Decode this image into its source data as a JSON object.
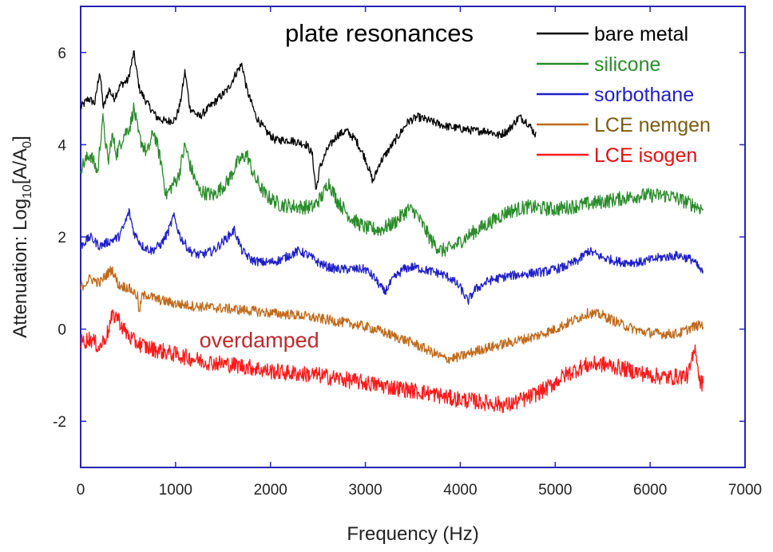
{
  "chart_data": {
    "type": "line",
    "title": "plate resonances",
    "xlabel": "Frequency (Hz)",
    "ylabel_prefix": "Attenuation: Log",
    "ylabel_sub": "10",
    "ylabel_suffix": "[A/A",
    "ylabel_sub2": "0",
    "ylabel_end": "]",
    "xlim": [
      0,
      7000
    ],
    "ylim": [
      -3,
      7
    ],
    "xticks": [
      0,
      1000,
      2000,
      3000,
      4000,
      5000,
      6000,
      7000
    ],
    "yticks": [
      -2,
      0,
      2,
      4,
      6
    ],
    "annotation": {
      "text": "overdamped",
      "x": 1250,
      "y": -0.4,
      "color": "#c0282d"
    },
    "series": [
      {
        "name": "bare metal",
        "color": "#000000",
        "label_color": "#000000",
        "noise": 0.09,
        "x": [
          0,
          80,
          150,
          200,
          240,
          300,
          350,
          420,
          500,
          560,
          620,
          700,
          800,
          900,
          1000,
          1050,
          1100,
          1150,
          1250,
          1400,
          1550,
          1650,
          1700,
          1750,
          1850,
          1950,
          2050,
          2200,
          2300,
          2380,
          2440,
          2480,
          2520,
          2600,
          2700,
          2800,
          2900,
          3000,
          3080,
          3150,
          3250,
          3350,
          3450,
          3550,
          3700,
          3850,
          4000,
          4150,
          4300,
          4400,
          4500,
          4620,
          4700,
          4800
        ],
        "y": [
          4.8,
          5.0,
          4.9,
          5.6,
          4.8,
          5.2,
          5.0,
          5.3,
          5.4,
          6.0,
          5.2,
          4.9,
          4.6,
          4.5,
          4.55,
          4.9,
          5.6,
          4.8,
          4.6,
          4.9,
          5.2,
          5.6,
          5.75,
          5.2,
          4.6,
          4.3,
          4.1,
          4.1,
          4.05,
          4.0,
          3.8,
          3.0,
          3.5,
          3.9,
          4.2,
          4.3,
          4.1,
          3.7,
          3.2,
          3.6,
          3.9,
          4.2,
          4.5,
          4.6,
          4.5,
          4.4,
          4.35,
          4.3,
          4.3,
          4.2,
          4.3,
          4.6,
          4.5,
          4.2
        ]
      },
      {
        "name": "silicone",
        "color": "#2a8c2a",
        "label_color": "#2a8c2a",
        "noise": 0.16,
        "x": [
          0,
          100,
          180,
          230,
          290,
          330,
          380,
          450,
          520,
          560,
          610,
          700,
          770,
          850,
          900,
          960,
          1030,
          1100,
          1160,
          1250,
          1400,
          1550,
          1650,
          1750,
          1830,
          1950,
          2100,
          2300,
          2450,
          2550,
          2610,
          2700,
          2850,
          3000,
          3150,
          3300,
          3450,
          3520,
          3620,
          3700,
          3800,
          3900,
          4000,
          4100,
          4300,
          4500,
          4700,
          5000,
          5300,
          5600,
          5900,
          6200,
          6450,
          6560
        ],
        "y": [
          3.5,
          3.8,
          3.4,
          4.6,
          3.6,
          4.2,
          3.8,
          4.2,
          4.4,
          4.8,
          4.2,
          3.8,
          4.3,
          3.6,
          2.9,
          3.1,
          3.3,
          4.0,
          3.5,
          3.0,
          2.9,
          3.2,
          3.6,
          3.8,
          3.3,
          2.9,
          2.7,
          2.65,
          2.65,
          2.9,
          3.2,
          2.8,
          2.4,
          2.2,
          2.15,
          2.3,
          2.6,
          2.55,
          2.2,
          1.9,
          1.7,
          1.75,
          1.9,
          2.05,
          2.3,
          2.55,
          2.65,
          2.6,
          2.7,
          2.8,
          2.9,
          2.9,
          2.7,
          2.6
        ]
      },
      {
        "name": "sorbothane",
        "color": "#1f1fc8",
        "label_color": "#1f1fc8",
        "noise": 0.1,
        "x": [
          0,
          100,
          200,
          300,
          400,
          450,
          510,
          560,
          650,
          750,
          850,
          920,
          980,
          1050,
          1150,
          1250,
          1400,
          1550,
          1620,
          1700,
          1800,
          1900,
          2000,
          2100,
          2200,
          2300,
          2400,
          2500,
          2600,
          2700,
          2800,
          2900,
          3000,
          3100,
          3200,
          3300,
          3400,
          3500,
          3600,
          3700,
          3800,
          3900,
          4000,
          4080,
          4150,
          4300,
          4500,
          4700,
          4900,
          5100,
          5250,
          5350,
          5500,
          5700,
          5900,
          6100,
          6300,
          6450,
          6560
        ],
        "y": [
          1.8,
          2.0,
          1.8,
          1.9,
          2.0,
          2.2,
          2.55,
          2.1,
          1.8,
          1.7,
          1.85,
          2.1,
          2.45,
          2.0,
          1.7,
          1.6,
          1.7,
          2.0,
          2.15,
          1.7,
          1.5,
          1.45,
          1.45,
          1.5,
          1.6,
          1.7,
          1.6,
          1.45,
          1.35,
          1.3,
          1.3,
          1.3,
          1.3,
          1.1,
          0.8,
          1.1,
          1.3,
          1.35,
          1.3,
          1.25,
          1.2,
          1.1,
          0.9,
          0.6,
          0.85,
          1.05,
          1.15,
          1.2,
          1.25,
          1.35,
          1.5,
          1.7,
          1.55,
          1.45,
          1.45,
          1.55,
          1.6,
          1.5,
          1.2
        ]
      },
      {
        "name": "LCE nemgen",
        "color": "#c06a1a",
        "label_color": "#7a5c12",
        "noise": 0.11,
        "x": [
          0,
          100,
          200,
          280,
          330,
          400,
          500,
          560,
          600,
          620,
          640,
          700,
          800,
          1000,
          1200,
          1500,
          1800,
          2000,
          2300,
          2600,
          2900,
          3100,
          3300,
          3500,
          3700,
          3850,
          4000,
          4200,
          4400,
          4600,
          4800,
          5000,
          5200,
          5350,
          5500,
          5700,
          5900,
          6100,
          6300,
          6450,
          6560
        ],
        "y": [
          0.9,
          1.1,
          1.0,
          1.2,
          1.3,
          0.95,
          0.9,
          0.8,
          0.7,
          0.3,
          0.7,
          0.75,
          0.65,
          0.55,
          0.5,
          0.45,
          0.4,
          0.35,
          0.3,
          0.2,
          0.1,
          0.0,
          -0.15,
          -0.3,
          -0.5,
          -0.65,
          -0.6,
          -0.45,
          -0.35,
          -0.25,
          -0.15,
          0.0,
          0.2,
          0.35,
          0.3,
          0.1,
          -0.05,
          -0.1,
          -0.1,
          0.05,
          0.1
        ]
      },
      {
        "name": "LCE isogen",
        "color": "#ff1a1a",
        "label_color": "#e01010",
        "noise": 0.18,
        "x": [
          0,
          100,
          200,
          280,
          330,
          380,
          450,
          550,
          700,
          900,
          1100,
          1300,
          1500,
          1700,
          1850,
          1950,
          2200,
          2500,
          2800,
          3100,
          3400,
          3700,
          3900,
          4100,
          4300,
          4500,
          4700,
          4900,
          5100,
          5300,
          5450,
          5600,
          5800,
          6000,
          6200,
          6400,
          6480,
          6520,
          6560
        ],
        "y": [
          -0.3,
          -0.2,
          -0.4,
          -0.1,
          0.25,
          0.3,
          0.0,
          -0.25,
          -0.4,
          -0.5,
          -0.6,
          -0.7,
          -0.75,
          -0.8,
          -0.85,
          -0.9,
          -0.95,
          -1.0,
          -1.1,
          -1.2,
          -1.3,
          -1.4,
          -1.5,
          -1.55,
          -1.6,
          -1.65,
          -1.5,
          -1.3,
          -1.0,
          -0.8,
          -0.75,
          -0.8,
          -0.9,
          -1.0,
          -1.05,
          -1.0,
          -0.4,
          -1.1,
          -1.2
        ]
      }
    ]
  }
}
